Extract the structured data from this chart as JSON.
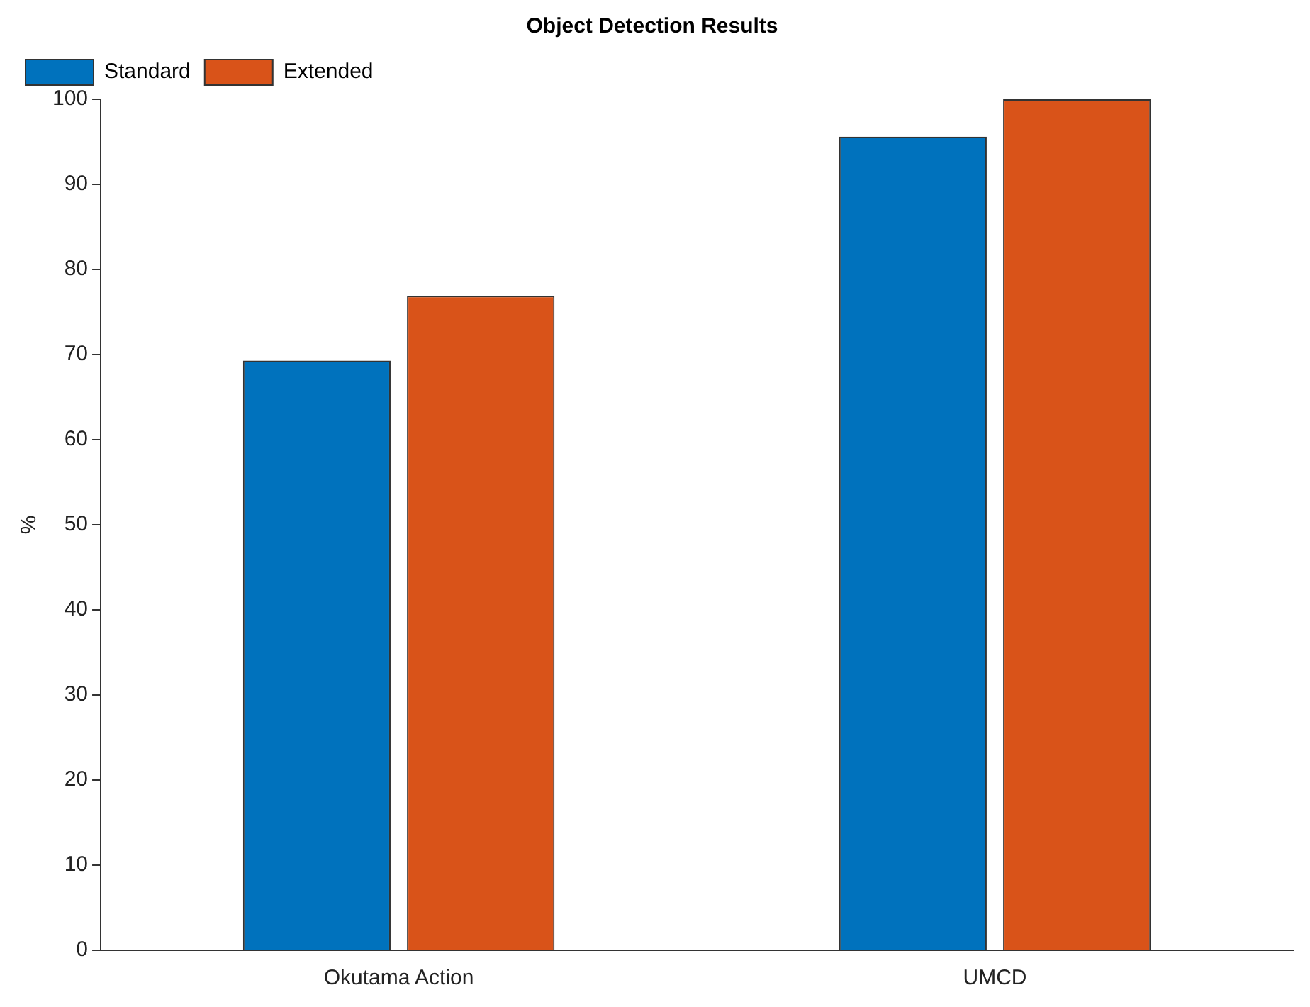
{
  "chart_data": {
    "type": "bar",
    "title": "Object Detection Results",
    "ylabel": "%",
    "categories": [
      "Okutama Action",
      "UMCD"
    ],
    "series": [
      {
        "name": "Standard",
        "color": "#0072bd",
        "values": [
          69.3,
          95.6
        ]
      },
      {
        "name": "Extended",
        "color": "#d95319",
        "values": [
          76.9,
          100
        ]
      }
    ],
    "ylim": [
      0,
      100
    ],
    "yticks": [
      0,
      10,
      20,
      30,
      40,
      50,
      60,
      70,
      80,
      90,
      100
    ],
    "grid": false,
    "legend": "top left"
  }
}
